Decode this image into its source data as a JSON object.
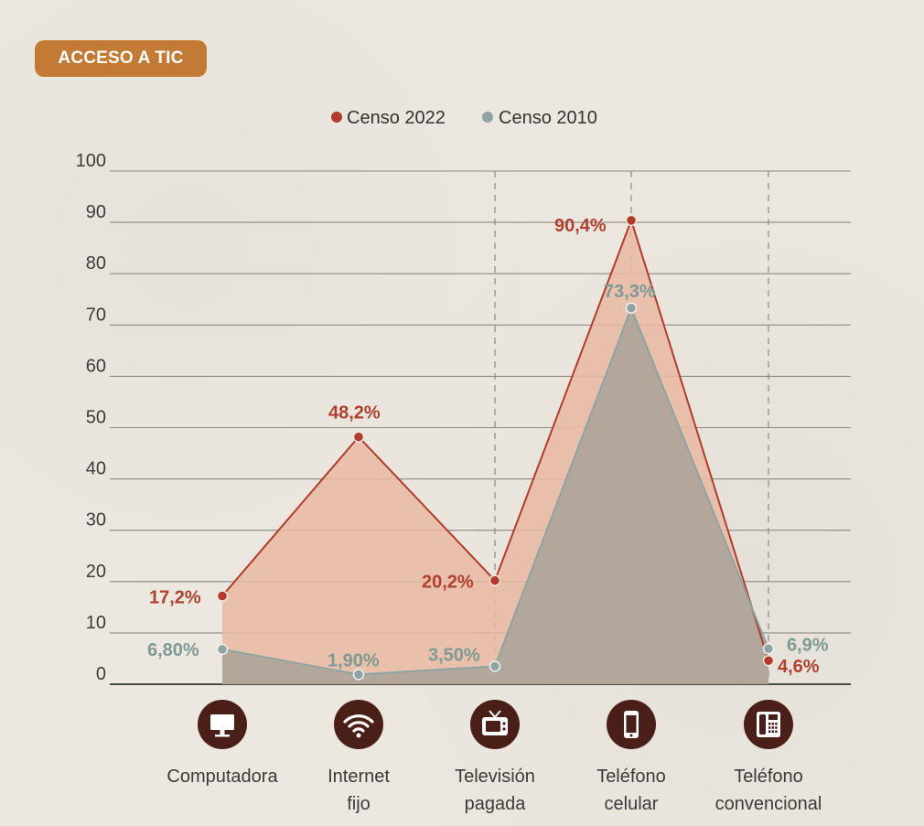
{
  "badge": "ACCESO A TIC",
  "legend": [
    {
      "label": "Censo 2022",
      "color": "#b23b2c"
    },
    {
      "label": "Censo 2010",
      "color": "#8ea4a2"
    }
  ],
  "colors": {
    "censo2022_line": "#b23b2c",
    "censo2022_fill": "#e9b9a3",
    "censo2010_line": "#8ea4a2",
    "censo2010_fill": "#a9a299",
    "icon_circle": "#4a1f18",
    "badge": "#c27a35"
  },
  "icons": [
    "monitor-icon",
    "wifi-icon",
    "television-icon",
    "smartphone-icon",
    "landline-phone-icon"
  ],
  "chart_data": {
    "type": "area",
    "title": "",
    "xlabel": "",
    "ylabel": "",
    "ylim": [
      0,
      100
    ],
    "yticks": [
      "0",
      "10",
      "20",
      "30",
      "40",
      "50",
      "60",
      "70",
      "80",
      "90",
      "100"
    ],
    "grid": true,
    "legend_position": "top",
    "categories": [
      [
        "Computadora"
      ],
      [
        "Internet",
        "fijo"
      ],
      [
        "Televisión",
        "pagada"
      ],
      [
        "Teléfono",
        "celular"
      ],
      [
        "Teléfono",
        "convencional"
      ]
    ],
    "series": [
      {
        "name": "Censo 2022",
        "values": [
          17.2,
          48.2,
          20.2,
          90.4,
          4.6
        ],
        "labels": [
          "17,2%",
          "48,2%",
          "20,2%",
          "90,4%",
          "4,6%"
        ]
      },
      {
        "name": "Censo 2010",
        "values": [
          6.8,
          1.9,
          3.5,
          73.3,
          6.9
        ],
        "labels": [
          "6,80%",
          "1,90%",
          "3,50%",
          "73,3%",
          "6,9%"
        ]
      }
    ]
  }
}
